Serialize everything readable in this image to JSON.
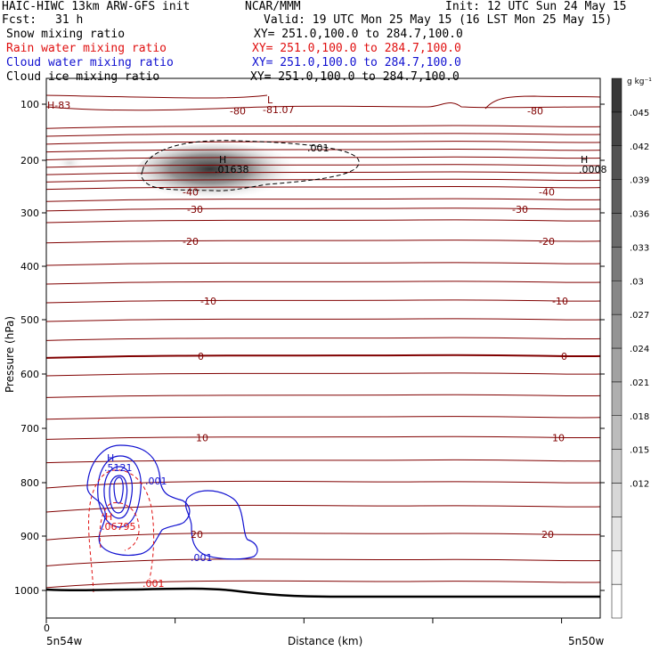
{
  "header": {
    "title_left": "HAIC-HIWC 13km ARW-GFS init",
    "center": "NCAR/MMM",
    "init": "Init: 12 UTC Sun 24 May 15",
    "fcst_label": "Fcst:",
    "fcst_value": "31 h",
    "valid": "Valid: 19 UTC Mon 25 May 15 (16 LST Mon 25 May 15)"
  },
  "fields": [
    {
      "name": "Snow mixing ratio",
      "xy": "XY= 251.0,100.0 to 284.7,100.0",
      "color": "#000000"
    },
    {
      "name": "Rain water mixing ratio",
      "xy": "XY= 251.0,100.0 to 284.7,100.0",
      "color": "#e01010"
    },
    {
      "name": "Cloud water mixing ratio",
      "xy": "XY= 251.0,100.0 to 284.7,100.0",
      "color": "#1010d0"
    },
    {
      "name": "Cloud ice mixing ratio",
      "xy": "XY= 251.0,100.0 to 284.7,100.0",
      "color": "#000000"
    }
  ],
  "colors": {
    "temperature": "#800000",
    "rain": "#e01010",
    "cloud_water": "#1010d0",
    "terrain": "#000000"
  },
  "chart_data": {
    "type": "cross-section",
    "xlabel": "Distance (km)",
    "ylabel": "Pressure (hPa)",
    "x_start_label": "5n54w",
    "x_end_label": "5n50w",
    "x_origin_tick": "0",
    "y_ticks": [
      100,
      200,
      300,
      400,
      500,
      600,
      700,
      800,
      900,
      1000
    ],
    "ylim": [
      1050,
      55
    ],
    "colorbar": {
      "unit": "g kg⁻¹",
      "ticks": [
        ".012",
        ".015",
        ".018",
        ".021",
        ".024",
        ".027",
        ".03",
        ".033",
        ".036",
        ".039",
        ".042",
        ".045"
      ],
      "levels": [
        0.001,
        0.003,
        0.006,
        0.009,
        0.012,
        0.015,
        0.018,
        0.021,
        0.024,
        0.027,
        0.03,
        0.033,
        0.036,
        0.039,
        0.042,
        0.045,
        0.048
      ]
    },
    "temperature_contours_C": [
      {
        "value": "-80",
        "p": 112
      },
      {
        "value": "-40",
        "p": 260
      },
      {
        "value": "-30",
        "p": 293
      },
      {
        "value": "-20",
        "p": 353
      },
      {
        "value": "-10",
        "p": 465
      },
      {
        "value": "0",
        "p": 567
      },
      {
        "value": "10",
        "p": 717
      },
      {
        "value": "20",
        "p": 897
      }
    ],
    "extrema": [
      {
        "label": "L",
        "value": "-81.07",
        "color": "temperature"
      },
      {
        "label": "H",
        "value": "-83",
        "color": "temperature",
        "text": "H-83"
      },
      {
        "label": "H",
        "value": ".01638",
        "color": "snow"
      },
      {
        "label": "H",
        "value": ".0008",
        "color": "snow"
      },
      {
        "label": "H",
        "value": ".5121",
        "color": "cloud_water"
      },
      {
        "label": "H",
        "value": ".06795",
        "color": "rain"
      }
    ],
    "contour_labels": {
      "snow": ".001",
      "cloud_water_1": ".001",
      "cloud_water_2": ".001",
      "rain": ".001"
    }
  }
}
